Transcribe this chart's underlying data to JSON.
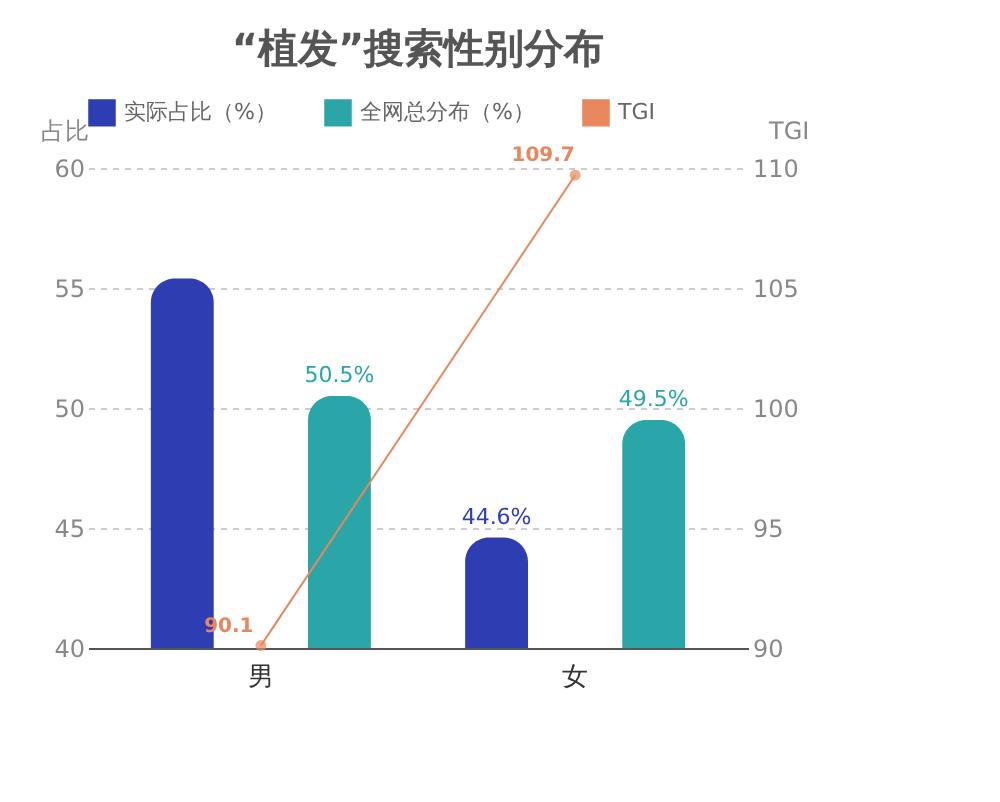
{
  "chart_data": {
    "type": "bar",
    "title": "“植发”搜索性别分布",
    "ylabel": "占比",
    "y2label": "TGI",
    "categories": [
      "男",
      "女"
    ],
    "series": [
      {
        "name": "实际占比（%）",
        "color": "#2f3db3",
        "values": [
          55.4,
          44.6
        ],
        "value_labels": [
          null,
          "44.6%"
        ]
      },
      {
        "name": "全网总分布（%）",
        "color": "#2aa5a8",
        "values": [
          50.5,
          49.5
        ],
        "value_labels": [
          "50.5%",
          "49.5%"
        ]
      },
      {
        "name": "TGI",
        "type": "line",
        "axis": "y2",
        "color": "#e8875e",
        "marker": "circle",
        "values": [
          90.1,
          109.7
        ],
        "value_labels": [
          "90.1",
          "109.7"
        ]
      }
    ],
    "ylim": [
      40,
      60
    ],
    "yticks": [
      40,
      45,
      50,
      55,
      60
    ],
    "y2lim": [
      90,
      110
    ],
    "y2ticks": [
      90,
      95,
      100,
      105,
      110
    ],
    "grid": "y",
    "legend": "top"
  }
}
